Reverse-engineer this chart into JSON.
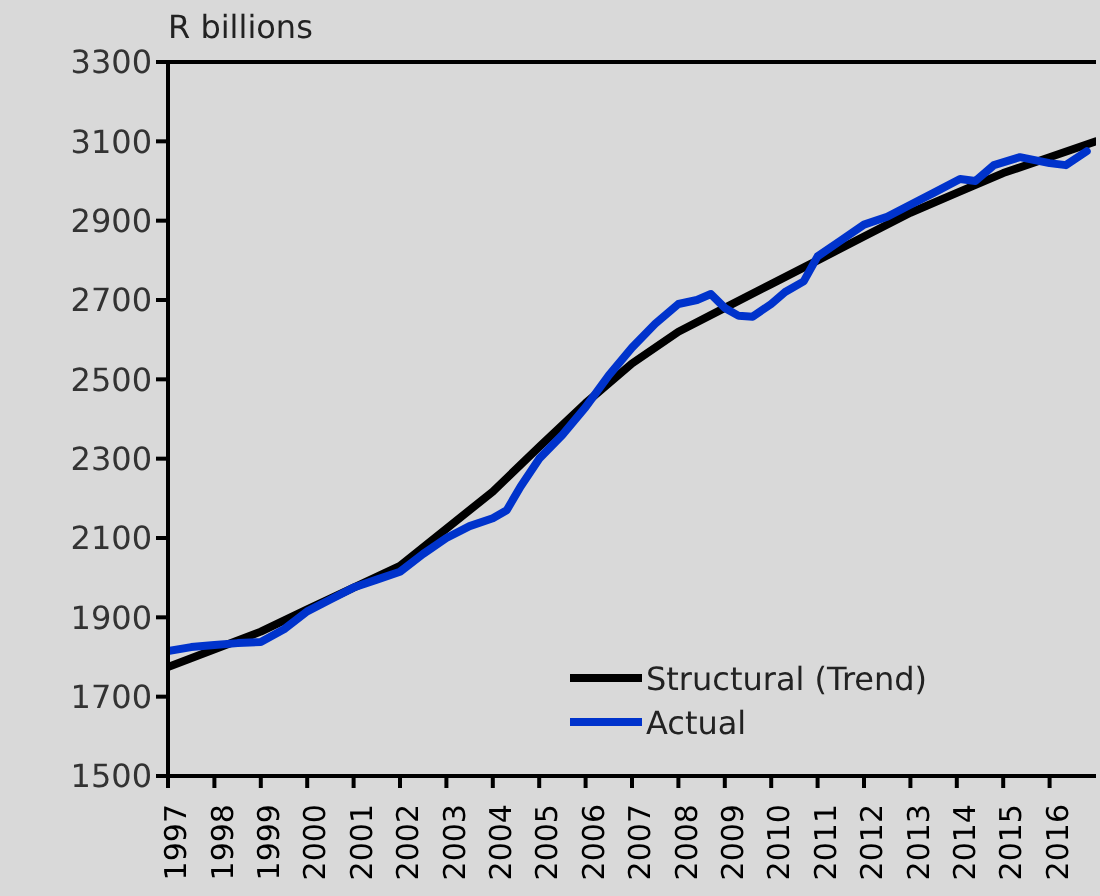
{
  "chart_data": {
    "type": "line",
    "ylabel": "R billions",
    "xlim": [
      1997,
      2017
    ],
    "xticks": [
      {
        "value": 1997,
        "label": "1997"
      },
      {
        "value": 1998,
        "label": "1998"
      },
      {
        "value": 1999,
        "label": "1999"
      },
      {
        "value": 2000,
        "label": "2000"
      },
      {
        "value": 2001,
        "label": "2001"
      },
      {
        "value": 2002,
        "label": "2002"
      },
      {
        "value": 2003,
        "label": "2003"
      },
      {
        "value": 2004,
        "label": "2004"
      },
      {
        "value": 2005,
        "label": "2005"
      },
      {
        "value": 2006,
        "label": "2006"
      },
      {
        "value": 2007,
        "label": "2007"
      },
      {
        "value": 2008,
        "label": "2008"
      },
      {
        "value": 2009,
        "label": "2009"
      },
      {
        "value": 2010,
        "label": "2010"
      },
      {
        "value": 2011,
        "label": "2011"
      },
      {
        "value": 2012,
        "label": "2012"
      },
      {
        "value": 2013,
        "label": "2013"
      },
      {
        "value": 2014,
        "label": "2014"
      },
      {
        "value": 2015,
        "label": "2015"
      },
      {
        "value": 2016,
        "label": "2016"
      }
    ],
    "ylim": [
      1500,
      3300
    ],
    "yticks": [
      1500,
      1700,
      1900,
      2100,
      2300,
      2500,
      2700,
      2900,
      3100,
      3300
    ],
    "grid": false,
    "legend": "bottom right",
    "marker": "none",
    "line_style": "solid",
    "series": [
      {
        "name": "Structural (Trend)",
        "color": "#000000",
        "x": [
          1997,
          1999,
          2000,
          2002,
          2004,
          2005,
          2006,
          2007,
          2008,
          2009,
          2010,
          2011,
          2012,
          2013,
          2014,
          2015,
          2016,
          2017
        ],
        "values": [
          1775,
          1864,
          1920,
          2030,
          2217,
          2330,
          2440,
          2540,
          2620,
          2680,
          2740,
          2800,
          2860,
          2920,
          2970,
          3020,
          3060,
          3100
        ]
      },
      {
        "name": "Actual",
        "color": "#0033cc",
        "x": [
          1997,
          1997.5,
          1998,
          1998.5,
          1999,
          1999.5,
          2000,
          2000.5,
          2001,
          2001.5,
          2002,
          2002.5,
          2003,
          2003.5,
          2004,
          2004.3,
          2004.6,
          2005,
          2005.5,
          2006,
          2006.5,
          2007,
          2007.5,
          2008,
          2008.4,
          2008.7,
          2009,
          2009.3,
          2009.6,
          2010,
          2010.3,
          2010.7,
          2011,
          2011.5,
          2012,
          2012.5,
          2013,
          2013.5,
          2014.07,
          2014.4,
          2014.8,
          2015.36,
          2016,
          2016.35,
          2016.8
        ],
        "values": [
          1815,
          1825,
          1830,
          1835,
          1838,
          1870,
          1915,
          1945,
          1975,
          1995,
          2015,
          2060,
          2100,
          2130,
          2150,
          2170,
          2230,
          2300,
          2360,
          2430,
          2510,
          2580,
          2640,
          2690,
          2700,
          2715,
          2680,
          2660,
          2658,
          2690,
          2720,
          2747,
          2810,
          2850,
          2890,
          2910,
          2940,
          2970,
          3005,
          3000,
          3040,
          3060,
          3045,
          3040,
          3075
        ]
      }
    ]
  }
}
